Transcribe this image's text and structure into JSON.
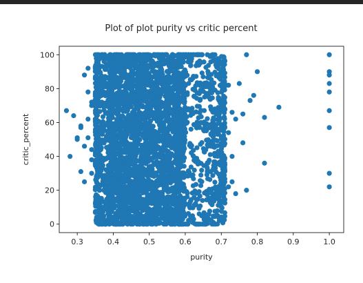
{
  "chart_data": {
    "type": "scatter",
    "title": "Plot of plot purity vs critic percent",
    "xlabel": "purity",
    "ylabel": "critic_percent",
    "xlim": [
      0.25,
      1.04
    ],
    "ylim": [
      -5,
      105
    ],
    "xticks": [
      "0.3",
      "0.4",
      "0.5",
      "0.6",
      "0.7",
      "0.8",
      "0.9",
      "1.0"
    ],
    "yticks": [
      "0",
      "20",
      "40",
      "60",
      "80",
      "100"
    ],
    "grid": false,
    "marker_color": "#1f77b4",
    "outliers": [
      {
        "x": 0.27,
        "y": 67
      },
      {
        "x": 0.28,
        "y": 40
      },
      {
        "x": 0.29,
        "y": 64
      },
      {
        "x": 0.3,
        "y": 51
      },
      {
        "x": 0.3,
        "y": 50
      },
      {
        "x": 0.31,
        "y": 58
      },
      {
        "x": 0.31,
        "y": 31
      },
      {
        "x": 0.31,
        "y": 57
      },
      {
        "x": 0.32,
        "y": 25
      },
      {
        "x": 0.32,
        "y": 88
      },
      {
        "x": 0.32,
        "y": 46
      },
      {
        "x": 0.33,
        "y": 92
      },
      {
        "x": 0.33,
        "y": 78
      },
      {
        "x": 0.33,
        "y": 62
      },
      {
        "x": 0.33,
        "y": 51
      },
      {
        "x": 0.34,
        "y": 30
      },
      {
        "x": 0.34,
        "y": 44
      },
      {
        "x": 0.34,
        "y": 70
      },
      {
        "x": 0.34,
        "y": 72
      },
      {
        "x": 0.34,
        "y": 38
      },
      {
        "x": 0.72,
        "y": 54
      },
      {
        "x": 0.72,
        "y": 82
      },
      {
        "x": 0.72,
        "y": 22
      },
      {
        "x": 0.73,
        "y": 40
      },
      {
        "x": 0.73,
        "y": 66
      },
      {
        "x": 0.73,
        "y": 25
      },
      {
        "x": 0.74,
        "y": 18
      },
      {
        "x": 0.74,
        "y": 62
      },
      {
        "x": 0.75,
        "y": 83
      },
      {
        "x": 0.76,
        "y": 65
      },
      {
        "x": 0.76,
        "y": 48
      },
      {
        "x": 0.77,
        "y": 100
      },
      {
        "x": 0.77,
        "y": 20
      },
      {
        "x": 0.78,
        "y": 73
      },
      {
        "x": 0.79,
        "y": 76
      },
      {
        "x": 0.8,
        "y": 90
      },
      {
        "x": 0.82,
        "y": 63
      },
      {
        "x": 0.82,
        "y": 36
      },
      {
        "x": 0.86,
        "y": 69
      },
      {
        "x": 1.0,
        "y": 100
      },
      {
        "x": 1.0,
        "y": 90
      },
      {
        "x": 1.0,
        "y": 88
      },
      {
        "x": 1.0,
        "y": 83
      },
      {
        "x": 1.0,
        "y": 78
      },
      {
        "x": 1.0,
        "y": 67
      },
      {
        "x": 1.0,
        "y": 57
      },
      {
        "x": 1.0,
        "y": 30
      },
      {
        "x": 1.0,
        "y": 22
      }
    ],
    "dense_region": {
      "x_range": [
        0.35,
        0.71
      ],
      "y_range": [
        0,
        100
      ],
      "center_x": 0.5
    }
  }
}
